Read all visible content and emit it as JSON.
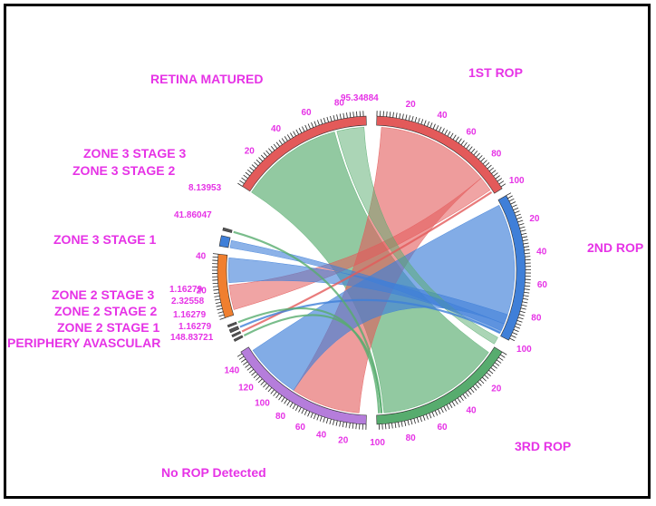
{
  "chart_data": {
    "type": "chord",
    "sectors": [
      {
        "name": "1ST ROP",
        "total": 100,
        "color": "#e35a5a",
        "ticks": [
          "20",
          "40",
          "60",
          "80",
          "100"
        ]
      },
      {
        "name": "2ND ROP",
        "total": 100,
        "color": "#3f7fd8",
        "ticks": [
          "20",
          "40",
          "60",
          "80",
          "100"
        ]
      },
      {
        "name": "3RD ROP",
        "total": 100,
        "color": "#57ac6e",
        "ticks": [
          "20",
          "40",
          "60",
          "80",
          "100"
        ]
      },
      {
        "name": "No ROP Detected",
        "total": 148.83721,
        "color": "#b57ddb",
        "ticks": [
          "20",
          "40",
          "60",
          "80",
          "100",
          "120",
          "140"
        ]
      },
      {
        "name": "PERIPHERY AVASCULAR",
        "value_label": "148.83721"
      },
      {
        "name": "ZONE 2 STAGE 1",
        "value_label": "1.16279"
      },
      {
        "name": "ZONE 2 STAGE 2",
        "value_label": "1.16279"
      },
      {
        "name": "ZONE 2 STAGE 3",
        "value_label": "2.32558"
      },
      {
        "name": "ZONE 2 STAGE 3",
        "value_label": "1.16279"
      },
      {
        "name": "ZONE 3 STAGE 1",
        "total": 41.86047,
        "value_label": "41.86047",
        "color": "#f07f2f",
        "ticks": [
          "20",
          "40"
        ]
      },
      {
        "name": "ZONE 3 STAGE 2",
        "value_label": "8.13953"
      },
      {
        "name": "ZONE 3 STAGE 3"
      },
      {
        "name": "RETINA MATURED",
        "total": 95.34884,
        "value_label": "95.34884",
        "color": "#e35a5a",
        "ticks": [
          "20",
          "40",
          "60",
          "80"
        ]
      }
    ],
    "labels": {
      "first_rop": "1ST ROP",
      "second_rop": "2ND ROP",
      "third_rop": "3RD ROP",
      "no_rop": "No ROP Detected",
      "retina_matured": "RETINA MATURED",
      "zone3_stage3": "ZONE 3 STAGE 3",
      "zone3_stage2": "ZONE 3 STAGE 2",
      "zone3_stage1": "ZONE 3 STAGE 1",
      "zone2_stage3": "ZONE 2 STAGE 3",
      "zone2_stage2": "ZONE 2 STAGE 2",
      "zone2_stage1": "ZONE 2 STAGE 1",
      "periphery_avascular": "PERIPHERY AVASCULAR"
    },
    "value_labels": {
      "retina_matured": "95.34884",
      "zone3_stage2": "8.13953",
      "zone3_stage1": "41.86047",
      "zone2_a": "1.16279",
      "zone2_b": "2.32558",
      "zone2_c": "1.16279",
      "zone2_d": "1.16279",
      "periphery": "148.83721"
    },
    "colors": {
      "red": "#e35a5a",
      "blue": "#3f7fd8",
      "green": "#57ac6e",
      "purple": "#b57ddb",
      "orange": "#f07f2f",
      "label": "#e633e6"
    }
  }
}
